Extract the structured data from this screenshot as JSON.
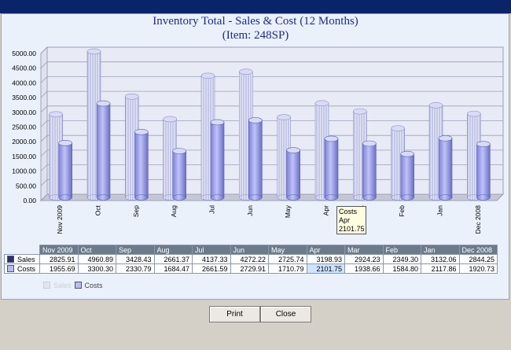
{
  "titlebar": {
    "color": "#0a246a"
  },
  "header": {
    "title_line1": "Inventory Total - Sales & Cost (12 Months)",
    "title_line2": "(Item: 248SP)"
  },
  "chart_data": {
    "type": "bar",
    "title": "Inventory Total - Sales & Cost (12 Months)",
    "subtitle": "(Item: 248SP)",
    "categories": [
      "Nov 2009",
      "Oct",
      "Sep",
      "Aug",
      "Jul",
      "Jun",
      "May",
      "Apr",
      "Mar",
      "Feb",
      "Jan",
      "Dec 2008"
    ],
    "ylim": [
      0,
      5000
    ],
    "y_ticks": [
      "0.00",
      "500.00",
      "1000.00",
      "1500.00",
      "2000.00",
      "2500.00",
      "3000.00",
      "3500.00",
      "4000.00",
      "4500.00",
      "5000.00"
    ],
    "grid": true,
    "series": [
      {
        "name": "Sales",
        "color": "#c8cbea",
        "style": "hatched-cylinder",
        "values": [
          2825.91,
          4960.89,
          3428.43,
          2661.37,
          4137.33,
          4272.22,
          2725.74,
          3198.93,
          2924.23,
          2349.3,
          3132.06,
          2844.25
        ],
        "labels": [
          "2825.91",
          "4960.89",
          "3428.43",
          "2661.37",
          "4137.33",
          "4272.22",
          "2725.74",
          "3198.93",
          "2924.23",
          "2349.30",
          "3132.06",
          "2844.25"
        ]
      },
      {
        "name": "Costs",
        "color": "#9c9ff0",
        "style": "solid-cylinder",
        "values": [
          1955.69,
          3300.3,
          2330.79,
          1684.47,
          2661.59,
          2729.91,
          1710.79,
          2101.75,
          1938.66,
          1584.8,
          2117.86,
          1920.73
        ],
        "labels": [
          "1955.69",
          "3300.30",
          "2330.79",
          "1684.47",
          "2661.59",
          "2729.91",
          "1710.79",
          "2101.75",
          "1938.66",
          "1584.80",
          "2117.86",
          "1920.73"
        ]
      }
    ],
    "tooltip": {
      "line1": "Costs",
      "line2": "Apr",
      "line3": "2101.75"
    },
    "legend": [
      {
        "name": "Sales",
        "faded": true
      },
      {
        "name": "Costs",
        "faded": false
      }
    ]
  },
  "buttons": {
    "print": "Print",
    "close": "Close"
  }
}
